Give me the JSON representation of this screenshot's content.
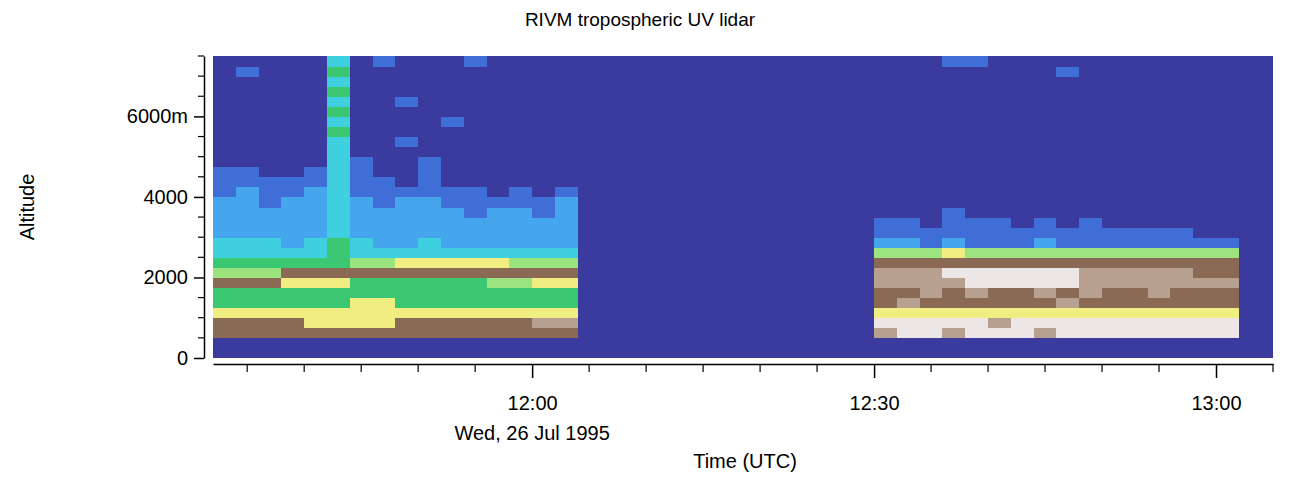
{
  "chart_data": {
    "type": "heatmap",
    "title": "RIVM tropospheric UV lidar",
    "y_label": "Altitude",
    "x_label": "Time (UTC)",
    "date_label": "Wed, 26 Jul 1995",
    "xlim": [
      692,
      785
    ],
    "xticks": [
      {
        "value": 720,
        "label": "12:00"
      },
      {
        "value": 750,
        "label": "12:30"
      },
      {
        "value": 780,
        "label": "13:00"
      }
    ],
    "x_minor_ticks": [
      695,
      700,
      705,
      710,
      715,
      725,
      730,
      735,
      740,
      745,
      755,
      760,
      765,
      770,
      775,
      785
    ],
    "ylim": [
      0,
      7500
    ],
    "yticks": [
      0,
      2000,
      4000,
      {
        "value": 6000,
        "label": "6000m"
      }
    ],
    "y_minor_ticks": [
      500,
      1000,
      1500,
      2500,
      3000,
      3500,
      4500,
      5000,
      5500,
      6500,
      7000,
      7500
    ],
    "colors": [
      "#3b3b9f",
      "#3f6fd6",
      "#45a6ee",
      "#3fd0e0",
      "#3cc873",
      "#9be37e",
      "#f0ee80",
      "#8b6a55",
      "#b8a091",
      "#ede6e6"
    ],
    "y_edges": [
      0,
      250,
      500,
      750,
      1000,
      1250,
      1500,
      1750,
      2000,
      2250,
      2500,
      2750,
      3000,
      3250,
      3500,
      3750,
      4000,
      4250,
      4500,
      4750,
      5000,
      5250,
      5500,
      5750,
      6000,
      6250,
      6500,
      6750,
      7000,
      7250,
      7500
    ],
    "blocks": [
      {
        "x_edges": [
          692,
          694,
          696,
          698,
          700,
          702,
          704,
          706,
          708,
          710,
          712,
          714,
          716,
          718,
          720,
          722,
          724
        ],
        "values": [
          [
            0,
            0,
            0,
            0,
            0,
            0,
            0,
            0,
            0,
            0,
            0,
            0,
            0,
            0,
            0,
            0
          ],
          [
            0,
            0,
            0,
            0,
            0,
            0,
            0,
            0,
            0,
            0,
            0,
            0,
            0,
            0,
            0,
            0
          ],
          [
            7,
            7,
            7,
            7,
            7,
            7,
            7,
            7,
            7,
            7,
            7,
            7,
            7,
            7,
            7,
            7
          ],
          [
            7,
            7,
            7,
            7,
            6,
            6,
            6,
            6,
            7,
            7,
            7,
            7,
            7,
            7,
            8,
            8
          ],
          [
            6,
            6,
            6,
            6,
            6,
            6,
            6,
            6,
            6,
            6,
            6,
            6,
            6,
            6,
            6,
            6
          ],
          [
            4,
            4,
            4,
            4,
            4,
            4,
            6,
            6,
            4,
            4,
            4,
            4,
            4,
            4,
            4,
            4
          ],
          [
            4,
            4,
            4,
            4,
            4,
            4,
            4,
            4,
            4,
            4,
            4,
            4,
            4,
            4,
            4,
            4
          ],
          [
            7,
            7,
            7,
            6,
            6,
            6,
            4,
            4,
            4,
            4,
            4,
            4,
            5,
            5,
            6,
            6
          ],
          [
            5,
            5,
            5,
            7,
            7,
            7,
            7,
            7,
            7,
            7,
            7,
            7,
            7,
            7,
            7,
            7
          ],
          [
            4,
            4,
            4,
            4,
            4,
            4,
            5,
            5,
            6,
            6,
            6,
            6,
            6,
            5,
            5,
            5
          ],
          [
            3,
            3,
            3,
            3,
            3,
            4,
            3,
            3,
            3,
            3,
            3,
            3,
            3,
            3,
            3,
            3
          ],
          [
            3,
            3,
            3,
            2,
            3,
            4,
            3,
            2,
            2,
            3,
            2,
            2,
            2,
            2,
            2,
            2
          ],
          [
            2,
            2,
            2,
            2,
            2,
            3,
            2,
            2,
            2,
            2,
            2,
            2,
            2,
            2,
            2,
            2
          ],
          [
            2,
            2,
            2,
            2,
            2,
            3,
            2,
            2,
            2,
            2,
            2,
            2,
            2,
            2,
            2,
            2
          ],
          [
            2,
            2,
            2,
            2,
            2,
            3,
            2,
            2,
            2,
            2,
            2,
            1,
            2,
            2,
            1,
            2
          ],
          [
            2,
            2,
            1,
            2,
            2,
            3,
            2,
            1,
            2,
            2,
            1,
            1,
            1,
            1,
            1,
            2
          ],
          [
            1,
            2,
            1,
            1,
            2,
            3,
            1,
            1,
            1,
            1,
            1,
            1,
            0,
            1,
            0,
            1
          ],
          [
            1,
            1,
            1,
            1,
            1,
            3,
            1,
            1,
            0,
            1,
            0,
            0,
            0,
            0,
            0,
            0
          ],
          [
            1,
            1,
            0,
            0,
            1,
            3,
            1,
            0,
            0,
            1,
            0,
            0,
            0,
            0,
            0,
            0
          ],
          [
            0,
            0,
            0,
            0,
            0,
            3,
            1,
            0,
            0,
            1,
            0,
            0,
            0,
            0,
            0,
            0
          ],
          [
            0,
            0,
            0,
            0,
            0,
            3,
            0,
            0,
            0,
            0,
            0,
            0,
            0,
            0,
            0,
            0
          ],
          [
            0,
            0,
            0,
            0,
            0,
            3,
            0,
            0,
            1,
            0,
            0,
            0,
            0,
            0,
            0,
            0
          ],
          [
            0,
            0,
            0,
            0,
            0,
            4,
            0,
            0,
            0,
            0,
            0,
            0,
            0,
            0,
            0,
            0
          ],
          [
            0,
            0,
            0,
            0,
            0,
            3,
            0,
            0,
            0,
            0,
            1,
            0,
            0,
            0,
            0,
            0
          ],
          [
            0,
            0,
            0,
            0,
            0,
            4,
            0,
            0,
            0,
            0,
            0,
            0,
            0,
            0,
            0,
            0
          ],
          [
            0,
            0,
            0,
            0,
            0,
            3,
            0,
            0,
            1,
            0,
            0,
            0,
            0,
            0,
            0,
            0
          ],
          [
            0,
            0,
            0,
            0,
            0,
            4,
            0,
            0,
            0,
            0,
            0,
            0,
            0,
            0,
            0,
            0
          ],
          [
            0,
            0,
            0,
            0,
            0,
            3,
            0,
            0,
            0,
            0,
            0,
            0,
            0,
            0,
            0,
            0
          ],
          [
            0,
            1,
            0,
            0,
            0,
            4,
            0,
            0,
            0,
            0,
            0,
            0,
            0,
            0,
            0,
            0
          ],
          [
            0,
            0,
            0,
            0,
            0,
            3,
            0,
            1,
            0,
            0,
            0,
            1,
            0,
            0,
            0,
            0
          ]
        ]
      },
      {
        "x_edges": [
          750,
          752,
          754,
          756,
          758,
          760,
          762,
          764,
          766,
          768,
          770,
          772,
          774,
          776,
          778,
          780,
          782
        ],
        "values": [
          [
            0,
            0,
            0,
            0,
            0,
            0,
            0,
            0,
            0,
            0,
            0,
            0,
            0,
            0,
            0,
            0
          ],
          [
            0,
            0,
            0,
            0,
            0,
            0,
            0,
            0,
            0,
            0,
            0,
            0,
            0,
            0,
            0,
            0
          ],
          [
            8,
            9,
            9,
            8,
            9,
            9,
            9,
            8,
            9,
            9,
            9,
            9,
            9,
            9,
            9,
            9
          ],
          [
            9,
            9,
            9,
            9,
            9,
            8,
            9,
            9,
            9,
            9,
            9,
            9,
            9,
            9,
            9,
            9
          ],
          [
            6,
            6,
            6,
            6,
            6,
            6,
            6,
            6,
            6,
            6,
            6,
            6,
            6,
            6,
            6,
            6
          ],
          [
            7,
            8,
            7,
            7,
            7,
            7,
            7,
            7,
            8,
            7,
            7,
            7,
            7,
            7,
            7,
            7
          ],
          [
            7,
            7,
            8,
            7,
            8,
            7,
            7,
            8,
            7,
            8,
            7,
            7,
            8,
            7,
            7,
            7
          ],
          [
            8,
            8,
            8,
            8,
            9,
            9,
            9,
            9,
            9,
            8,
            8,
            8,
            8,
            8,
            8,
            8
          ],
          [
            8,
            8,
            8,
            9,
            9,
            9,
            9,
            9,
            9,
            8,
            8,
            8,
            8,
            8,
            7,
            7
          ],
          [
            7,
            7,
            7,
            7,
            7,
            7,
            7,
            7,
            7,
            7,
            7,
            7,
            7,
            7,
            7,
            7
          ],
          [
            5,
            5,
            5,
            6,
            5,
            5,
            5,
            5,
            5,
            5,
            5,
            5,
            5,
            5,
            5,
            5
          ],
          [
            2,
            2,
            1,
            2,
            1,
            1,
            1,
            2,
            1,
            1,
            1,
            1,
            1,
            1,
            1,
            1
          ],
          [
            1,
            1,
            1,
            1,
            1,
            1,
            1,
            1,
            1,
            1,
            1,
            1,
            1,
            1,
            0,
            0
          ],
          [
            1,
            1,
            0,
            1,
            1,
            1,
            0,
            1,
            0,
            1,
            0,
            0,
            0,
            0,
            0,
            0
          ],
          [
            0,
            0,
            0,
            1,
            0,
            0,
            0,
            0,
            0,
            0,
            0,
            0,
            0,
            0,
            0,
            0
          ],
          [
            0,
            0,
            0,
            0,
            0,
            0,
            0,
            0,
            0,
            0,
            0,
            0,
            0,
            0,
            0,
            0
          ],
          [
            0,
            0,
            0,
            0,
            0,
            0,
            0,
            0,
            0,
            0,
            0,
            0,
            0,
            0,
            0,
            0
          ],
          [
            0,
            0,
            0,
            0,
            0,
            0,
            0,
            0,
            0,
            0,
            0,
            0,
            0,
            0,
            0,
            0
          ],
          [
            0,
            0,
            0,
            0,
            0,
            0,
            0,
            0,
            0,
            0,
            0,
            0,
            0,
            0,
            0,
            0
          ],
          [
            0,
            0,
            0,
            0,
            0,
            0,
            0,
            0,
            0,
            0,
            0,
            0,
            0,
            0,
            0,
            0
          ],
          [
            0,
            0,
            0,
            0,
            0,
            0,
            0,
            0,
            0,
            0,
            0,
            0,
            0,
            0,
            0,
            0
          ],
          [
            0,
            0,
            0,
            0,
            0,
            0,
            0,
            0,
            0,
            0,
            0,
            0,
            0,
            0,
            0,
            0
          ],
          [
            0,
            0,
            0,
            0,
            0,
            0,
            0,
            0,
            0,
            0,
            0,
            0,
            0,
            0,
            0,
            0
          ],
          [
            0,
            0,
            0,
            0,
            0,
            0,
            0,
            0,
            0,
            0,
            0,
            0,
            0,
            0,
            0,
            0
          ],
          [
            0,
            0,
            0,
            0,
            0,
            0,
            0,
            0,
            0,
            0,
            0,
            0,
            0,
            0,
            0,
            0
          ],
          [
            0,
            0,
            0,
            0,
            0,
            0,
            0,
            0,
            0,
            0,
            0,
            0,
            0,
            0,
            0,
            0
          ],
          [
            0,
            0,
            0,
            0,
            0,
            0,
            0,
            0,
            0,
            0,
            0,
            0,
            0,
            0,
            0,
            0
          ],
          [
            0,
            0,
            0,
            0,
            0,
            0,
            0,
            0,
            0,
            0,
            0,
            0,
            0,
            0,
            0,
            0
          ],
          [
            0,
            0,
            0,
            0,
            0,
            0,
            0,
            0,
            1,
            0,
            0,
            0,
            0,
            0,
            0,
            0
          ],
          [
            0,
            0,
            0,
            1,
            1,
            0,
            0,
            0,
            0,
            0,
            0,
            0,
            0,
            0,
            0,
            0
          ]
        ]
      }
    ]
  }
}
